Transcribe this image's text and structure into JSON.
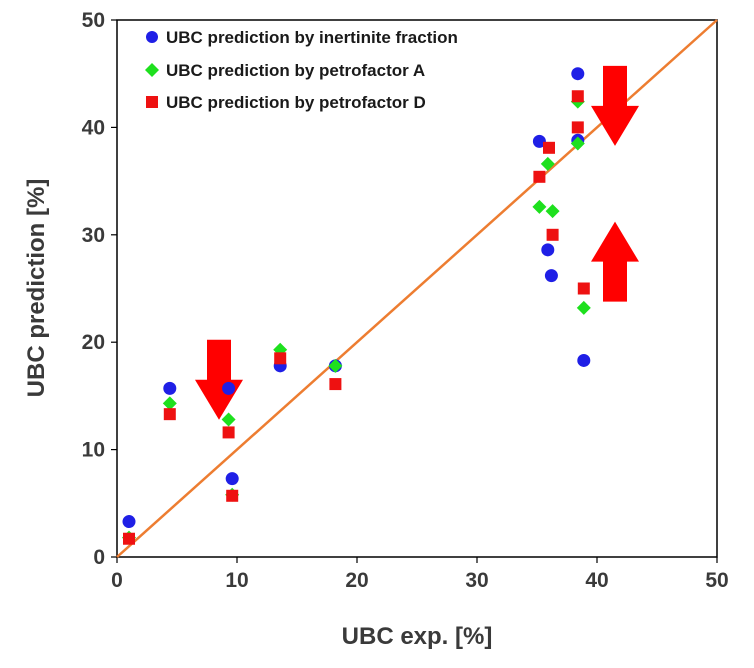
{
  "chart_data": {
    "type": "scatter",
    "xlabel": "UBC exp. [%]",
    "ylabel": "UBC prediction  [%]",
    "xlim": [
      0,
      50
    ],
    "ylim": [
      0,
      50
    ],
    "xticks": [
      "0",
      "10",
      "20",
      "30",
      "40",
      "50"
    ],
    "yticks": [
      "0",
      "10",
      "20",
      "30",
      "40",
      "50"
    ],
    "grid": false,
    "legend_position": "top-left",
    "series": [
      {
        "name": "UBC prediction by inertinite fraction",
        "marker": "circle",
        "color": "#1f1fe6",
        "points": [
          [
            1.0,
            3.3
          ],
          [
            4.4,
            15.7
          ],
          [
            9.3,
            15.7
          ],
          [
            9.6,
            7.3
          ],
          [
            13.6,
            17.8
          ],
          [
            18.2,
            17.8
          ],
          [
            35.2,
            38.7
          ],
          [
            35.9,
            28.6
          ],
          [
            36.2,
            26.2
          ],
          [
            38.4,
            45.0
          ],
          [
            38.4,
            38.8
          ],
          [
            38.9,
            18.3
          ]
        ]
      },
      {
        "name": "UBC prediction by petrofactor A",
        "marker": "diamond",
        "color": "#1ee01e",
        "points": [
          [
            1.0,
            1.8
          ],
          [
            4.4,
            14.3
          ],
          [
            9.3,
            12.8
          ],
          [
            9.6,
            5.8
          ],
          [
            13.6,
            19.3
          ],
          [
            18.2,
            17.8
          ],
          [
            35.2,
            32.6
          ],
          [
            35.9,
            36.6
          ],
          [
            36.3,
            32.2
          ],
          [
            38.4,
            42.4
          ],
          [
            38.4,
            38.5
          ],
          [
            38.9,
            23.2
          ]
        ]
      },
      {
        "name": "UBC prediction by petrofactor D",
        "marker": "square",
        "color": "#ee1111",
        "points": [
          [
            1.0,
            1.7
          ],
          [
            4.4,
            13.3
          ],
          [
            9.3,
            11.6
          ],
          [
            9.6,
            5.7
          ],
          [
            13.6,
            18.5
          ],
          [
            18.2,
            16.1
          ],
          [
            35.2,
            35.4
          ],
          [
            36.0,
            38.1
          ],
          [
            36.3,
            30.0
          ],
          [
            38.4,
            42.9
          ],
          [
            38.4,
            40.0
          ],
          [
            38.9,
            25.0
          ]
        ]
      }
    ],
    "reference_line": {
      "name": "y = x",
      "from": [
        0,
        0
      ],
      "to": [
        50,
        50
      ],
      "color": "#ed7d31"
    },
    "annotations": [
      {
        "type": "arrow",
        "direction": "down",
        "at": [
          8.5,
          16.5
        ],
        "color": "#ff0000"
      },
      {
        "type": "arrow",
        "direction": "down",
        "at": [
          41.5,
          42.0
        ],
        "color": "#ff0000"
      },
      {
        "type": "arrow",
        "direction": "up",
        "at": [
          41.5,
          27.5
        ],
        "color": "#ff0000"
      }
    ]
  }
}
